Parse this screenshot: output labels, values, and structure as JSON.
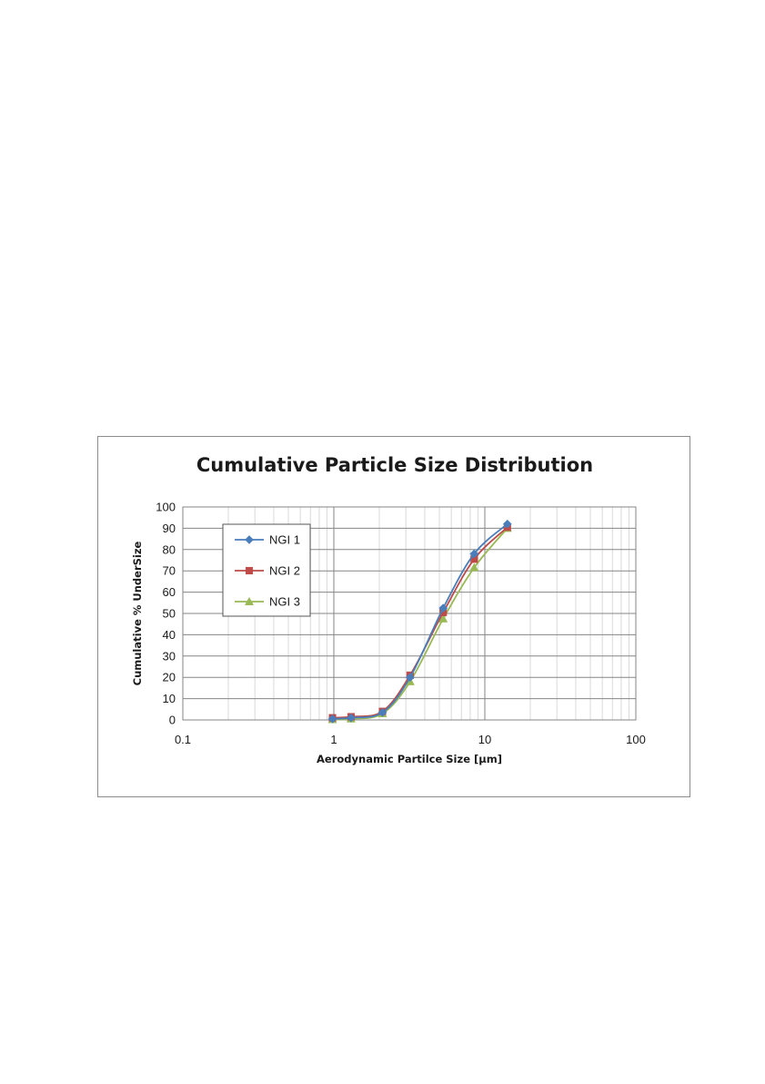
{
  "chart_data": {
    "type": "line",
    "title": "Cumulative Particle Size Distribution",
    "xlabel": "Aerodynamic Partilce Size [µm]",
    "ylabel": "Cumulative % UnderSize",
    "x_scale": "log",
    "xlim": [
      0.1,
      100
    ],
    "ylim": [
      0,
      100
    ],
    "x_ticks": [
      "0.1",
      "1",
      "10",
      "100"
    ],
    "y_ticks": [
      "0",
      "10",
      "20",
      "30",
      "40",
      "50",
      "60",
      "70",
      "80",
      "90",
      "100"
    ],
    "grid": true,
    "legend_position": "top-left",
    "series": [
      {
        "name": "NGI 1",
        "color": "#4a7ebb",
        "marker": "diamond",
        "x": [
          0.98,
          1.3,
          2.1,
          3.2,
          5.3,
          8.5,
          14.1
        ],
        "y": [
          0.5,
          1,
          3.5,
          20,
          52.5,
          78,
          92
        ]
      },
      {
        "name": "NGI 2",
        "color": "#be4b48",
        "marker": "square",
        "x": [
          0.98,
          1.3,
          2.1,
          3.2,
          5.3,
          8.5,
          14.1
        ],
        "y": [
          1,
          1.5,
          4,
          21,
          50.5,
          75.5,
          90.5
        ]
      },
      {
        "name": "NGI 3",
        "color": "#98b954",
        "marker": "triangle",
        "x": [
          0.98,
          1.3,
          2.1,
          3.2,
          5.3,
          8.5,
          14.1
        ],
        "y": [
          0.2,
          0.5,
          3,
          18,
          47.5,
          71.5,
          90
        ]
      }
    ]
  }
}
